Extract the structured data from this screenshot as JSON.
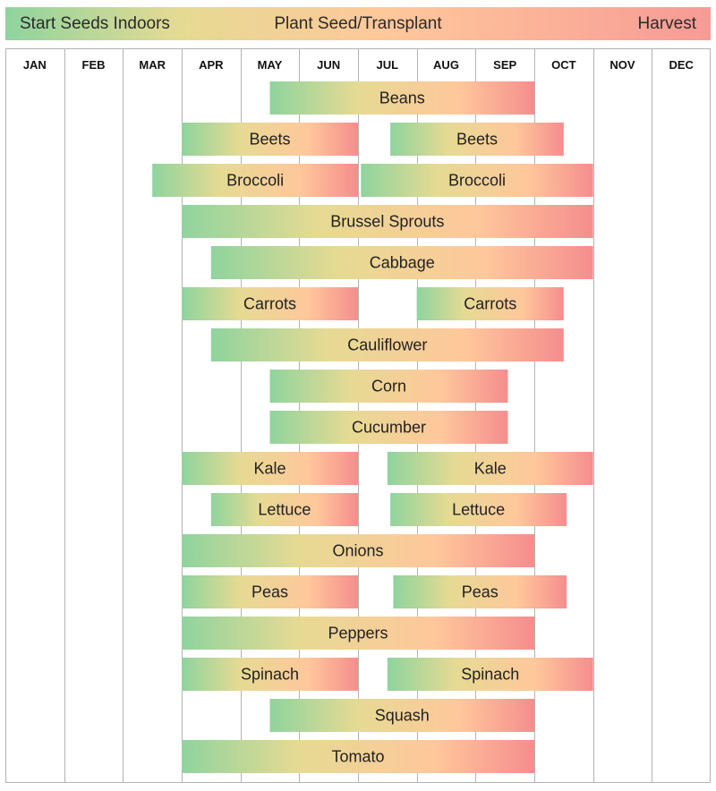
{
  "legend": {
    "start_label": "Start Seeds Indoors",
    "plant_label": "Plant Seed/Transplant",
    "harvest_label": "Harvest"
  },
  "colors": {
    "start": "#8fd49e",
    "mid": "#e6da93",
    "plant": "#ffc79b",
    "harvest": "#f58d8e",
    "grid": "#b3b3b3"
  },
  "chart_data": {
    "type": "gantt",
    "title": "",
    "months": [
      "JAN",
      "FEB",
      "MAR",
      "APR",
      "MAY",
      "JUN",
      "JUL",
      "AUG",
      "SEP",
      "OCT",
      "NOV",
      "DEC"
    ],
    "month_units": "months from start of January (0 = Jan 1, 12 = Dec 31)",
    "grid": true,
    "rows": [
      {
        "crop": "Beans",
        "periods": [
          {
            "label": "Beans",
            "start": 4.5,
            "end": 9.0
          }
        ]
      },
      {
        "crop": "Beets",
        "periods": [
          {
            "label": "Beets",
            "start": 3.0,
            "end": 6.0
          },
          {
            "label": "Beets",
            "start": 6.55,
            "end": 9.5
          }
        ]
      },
      {
        "crop": "Broccoli",
        "periods": [
          {
            "label": "Broccoli",
            "start": 2.5,
            "end": 6.0
          },
          {
            "label": "Broccoli",
            "start": 6.05,
            "end": 10.0
          }
        ]
      },
      {
        "crop": "Brussel Sprouts",
        "periods": [
          {
            "label": "Brussel Sprouts",
            "start": 3.0,
            "end": 10.0
          }
        ]
      },
      {
        "crop": "Cabbage",
        "periods": [
          {
            "label": "Cabbage",
            "start": 3.5,
            "end": 10.0
          }
        ]
      },
      {
        "crop": "Carrots",
        "periods": [
          {
            "label": "Carrots",
            "start": 3.0,
            "end": 6.0
          },
          {
            "label": "Carrots",
            "start": 7.0,
            "end": 9.5
          }
        ]
      },
      {
        "crop": "Cauliflower",
        "periods": [
          {
            "label": "Cauliflower",
            "start": 3.5,
            "end": 9.5
          }
        ]
      },
      {
        "crop": "Corn",
        "periods": [
          {
            "label": "Corn",
            "start": 4.5,
            "end": 8.55
          }
        ]
      },
      {
        "crop": "Cucumber",
        "periods": [
          {
            "label": "Cucumber",
            "start": 4.5,
            "end": 8.55
          }
        ]
      },
      {
        "crop": "Kale",
        "periods": [
          {
            "label": "Kale",
            "start": 3.0,
            "end": 6.0
          },
          {
            "label": "Kale",
            "start": 6.5,
            "end": 10.0
          }
        ]
      },
      {
        "crop": "Lettuce",
        "periods": [
          {
            "label": "Lettuce",
            "start": 3.5,
            "end": 6.0
          },
          {
            "label": "Lettuce",
            "start": 6.55,
            "end": 9.55
          }
        ]
      },
      {
        "crop": "Onions",
        "periods": [
          {
            "label": "Onions",
            "start": 3.0,
            "end": 9.0
          }
        ]
      },
      {
        "crop": "Peas",
        "periods": [
          {
            "label": "Peas",
            "start": 3.0,
            "end": 6.0
          },
          {
            "label": "Peas",
            "start": 6.6,
            "end": 9.55
          }
        ]
      },
      {
        "crop": "Peppers",
        "periods": [
          {
            "label": "Peppers",
            "start": 3.0,
            "end": 9.0
          }
        ]
      },
      {
        "crop": "Spinach",
        "periods": [
          {
            "label": "Spinach",
            "start": 3.0,
            "end": 6.0
          },
          {
            "label": "Spinach",
            "start": 6.5,
            "end": 10.0
          }
        ]
      },
      {
        "crop": "Squash",
        "periods": [
          {
            "label": "Squash",
            "start": 4.5,
            "end": 9.0
          }
        ]
      },
      {
        "crop": "Tomato",
        "periods": [
          {
            "label": "Tomato",
            "start": 3.0,
            "end": 9.0
          }
        ]
      }
    ]
  }
}
